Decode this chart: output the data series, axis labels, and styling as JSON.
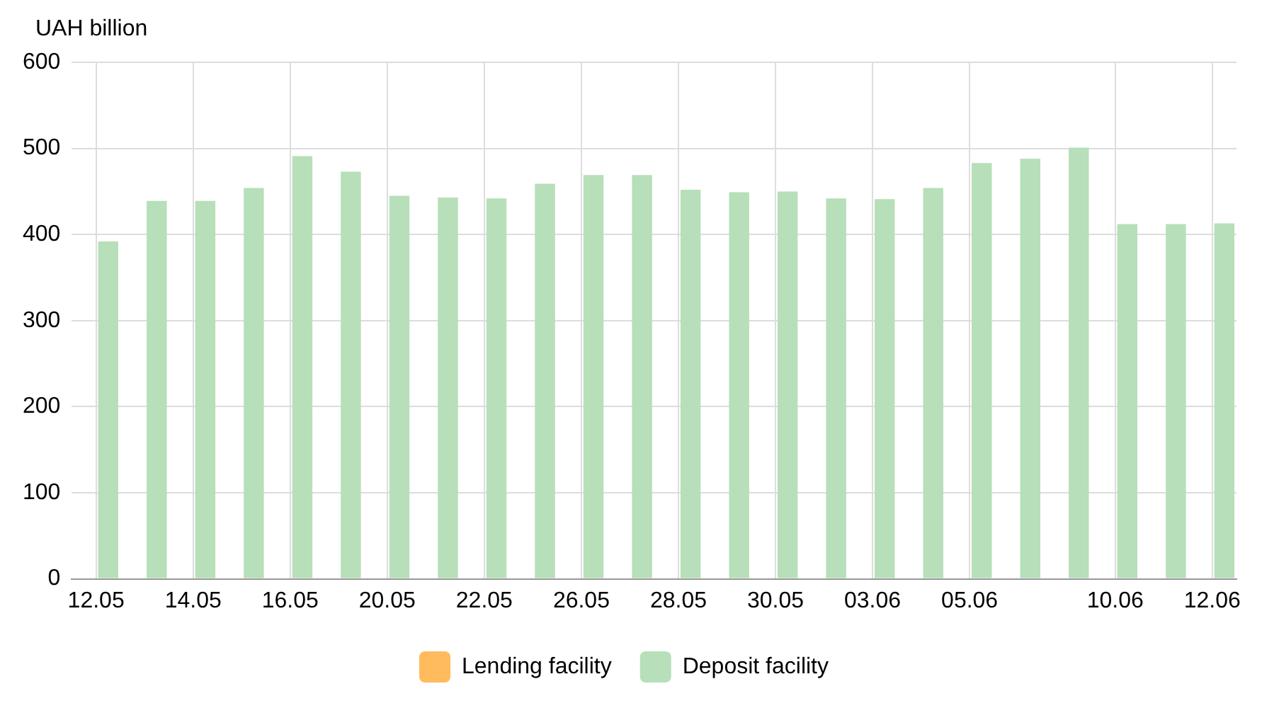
{
  "chart_data": {
    "type": "bar",
    "ylabel": "UAH billion",
    "categories": [
      "12.05",
      null,
      "14.05",
      null,
      "16.05",
      null,
      "20.05",
      null,
      "22.05",
      null,
      "26.05",
      null,
      "28.05",
      null,
      "30.05",
      null,
      "03.06",
      null,
      "05.06",
      null,
      null,
      "10.06",
      null,
      "12.06"
    ],
    "series": [
      {
        "name": "Lending facility",
        "color": "#ffbb5c",
        "values": [
          null,
          null,
          null,
          null,
          null,
          null,
          null,
          null,
          null,
          null,
          null,
          null,
          null,
          null,
          null,
          null,
          null,
          null,
          null,
          null,
          null,
          null,
          null,
          null
        ]
      },
      {
        "name": "Deposit facility",
        "color": "#b7dfb9",
        "values": [
          392,
          439,
          439,
          454,
          491,
          473,
          445,
          443,
          442,
          459,
          469,
          469,
          452,
          449,
          450,
          442,
          441,
          454,
          483,
          488,
          501,
          412,
          412,
          413
        ]
      }
    ],
    "ylim": [
      0,
      600
    ],
    "yticks": [
      0,
      100,
      200,
      300,
      400,
      500,
      600
    ],
    "grid": true,
    "legend": "bottom"
  }
}
